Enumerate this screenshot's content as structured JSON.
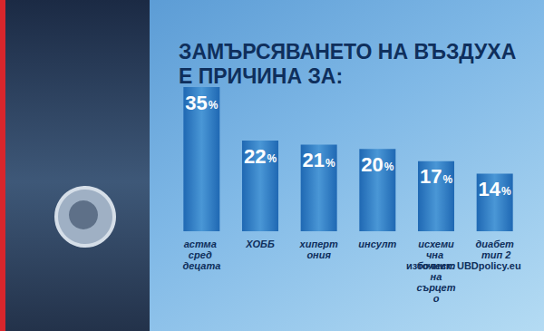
{
  "chart_data": {
    "type": "bar",
    "title": "ЗАМЪРСЯВАНЕТО НА ВЪЗДУХА\nЕ ПРИЧИНА ЗА:",
    "categories": [
      "астма сред децата",
      "ХОББ",
      "хипертония",
      "инсулт",
      "исхемична болест на сърцето",
      "диабет тип 2"
    ],
    "values": [
      35,
      22,
      21,
      20,
      17,
      14
    ],
    "value_labels": [
      "35%",
      "22%",
      "21%",
      "20%",
      "17%",
      "14%"
    ],
    "color": "#1f68b3",
    "ylim": [
      0,
      35
    ],
    "grid": false,
    "data_labels": true,
    "tick_labels": "x",
    "source": "източник: UBDpolicy.eu"
  }
}
